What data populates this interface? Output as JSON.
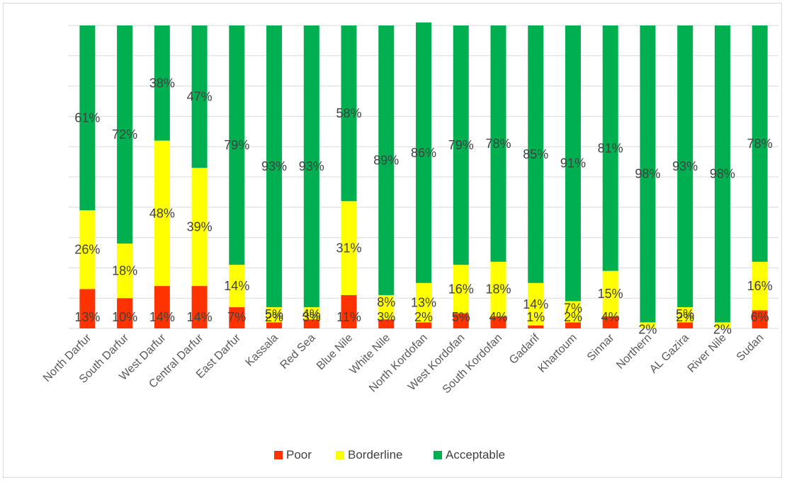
{
  "chart_data": {
    "type": "bar",
    "stacked": true,
    "percent_stacked": true,
    "categories": [
      "North Darfur",
      "South Darfur",
      "West Darfur",
      "Central Darfur",
      "East Darfur",
      "Kassala",
      "Red Sea",
      "Blue Nile",
      "White Nile",
      "North Kordofan",
      "West Kordofan",
      "South Kordofan",
      "Gadarif",
      "Khartoum",
      "Sinnar",
      "Northern",
      "AL Gazira",
      "River Nile",
      "Sudan"
    ],
    "series": [
      {
        "name": "Poor",
        "color": "#ff3300",
        "values": [
          13,
          10,
          14,
          14,
          7,
          2,
          3,
          11,
          3,
          2,
          5,
          4,
          1,
          2,
          4,
          0,
          2,
          0,
          6
        ],
        "labels": [
          "13%",
          "10%",
          "14%",
          "14%",
          "7%",
          "2%",
          "3%",
          "11%",
          "3%",
          "2%",
          "5%",
          "4%",
          "1%",
          "2%",
          "4%",
          "",
          "2%",
          "",
          "6%"
        ]
      },
      {
        "name": "Borderline",
        "color": "#ffff00",
        "values": [
          26,
          18,
          48,
          39,
          14,
          5,
          4,
          31,
          8,
          13,
          16,
          18,
          14,
          7,
          15,
          2,
          5,
          2,
          16
        ],
        "labels": [
          "26%",
          "18%",
          "48%",
          "39%",
          "14%",
          "5%",
          "4%",
          "31%",
          "8%",
          "13%",
          "16%",
          "18%",
          "14%",
          "7%",
          "15%",
          "2%",
          "5%",
          "2%",
          "16%"
        ]
      },
      {
        "name": "Acceptable",
        "color": "#00b050",
        "values": [
          61,
          72,
          38,
          47,
          79,
          93,
          93,
          58,
          89,
          86,
          79,
          78,
          85,
          91,
          81,
          98,
          93,
          98,
          78
        ],
        "labels": [
          "61%",
          "72%",
          "38%",
          "47%",
          "79%",
          "93%",
          "93%",
          "58%",
          "89%",
          "86%",
          "79%",
          "78%",
          "85%",
          "91%",
          "81%",
          "98%",
          "93%",
          "98%",
          "78%"
        ]
      }
    ],
    "ylim": [
      0,
      100
    ],
    "grid": true,
    "legend": "bottom",
    "xlabel": "",
    "ylabel": ""
  }
}
